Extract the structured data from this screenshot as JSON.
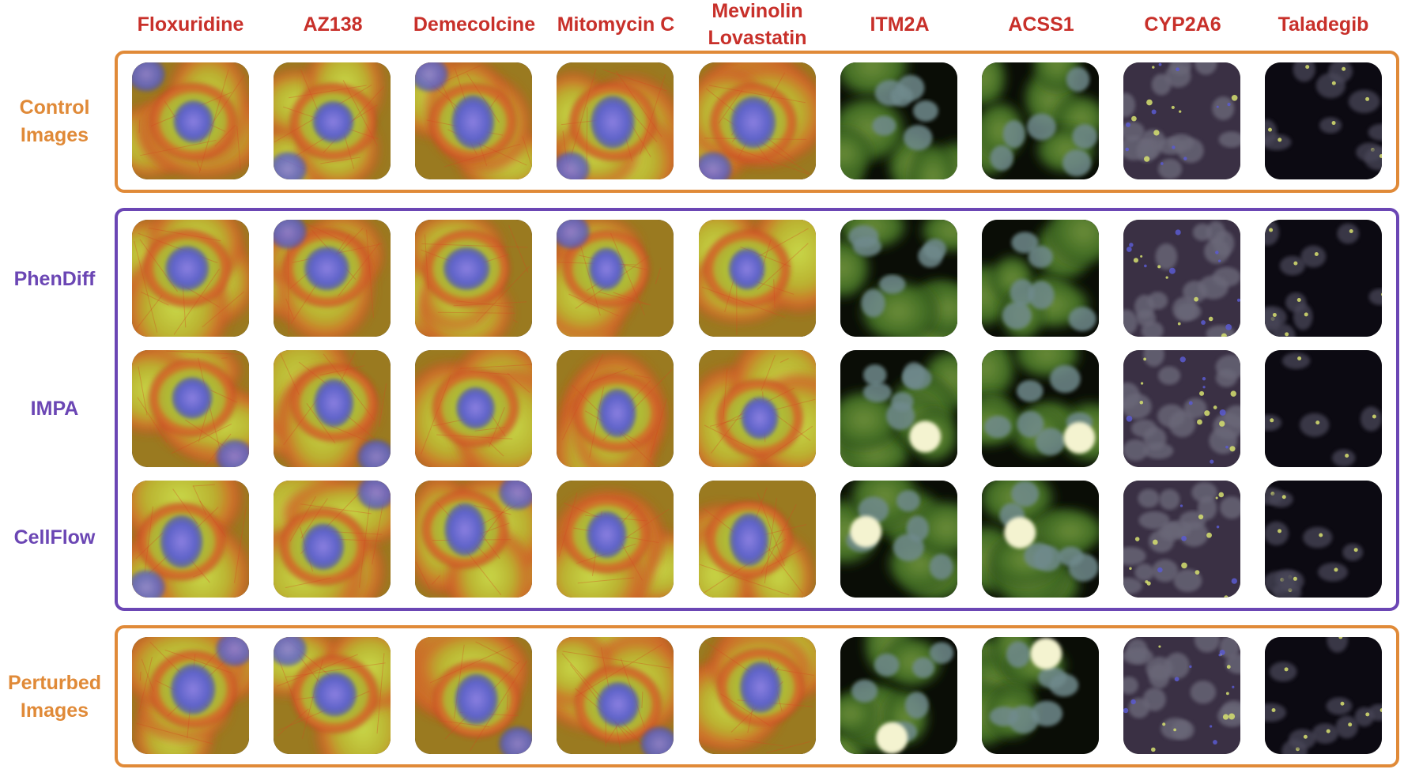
{
  "columns": [
    "Floxuridine",
    "AZ138",
    "Demecolcine",
    "Mitomycin C",
    "Mevinolin Lovastatin",
    "ITM2A",
    "ACSS1",
    "CYP2A6",
    "Taladegib"
  ],
  "rows": [
    {
      "id": "control",
      "label_lines": [
        "Control",
        "Images"
      ],
      "group": "orange"
    },
    {
      "id": "phendiff",
      "label_lines": [
        "PhenDiff"
      ],
      "group": "purple"
    },
    {
      "id": "impa",
      "label_lines": [
        "IMPA"
      ],
      "group": "purple"
    },
    {
      "id": "cellflow",
      "label_lines": [
        "CellFlow"
      ],
      "group": "purple"
    },
    {
      "id": "perturbed",
      "label_lines": [
        "Perturbed",
        "Images"
      ],
      "group": "orange"
    }
  ],
  "colors": {
    "header": "#c8302a",
    "orange": "#e08a38",
    "purple": "#6b46b4"
  }
}
